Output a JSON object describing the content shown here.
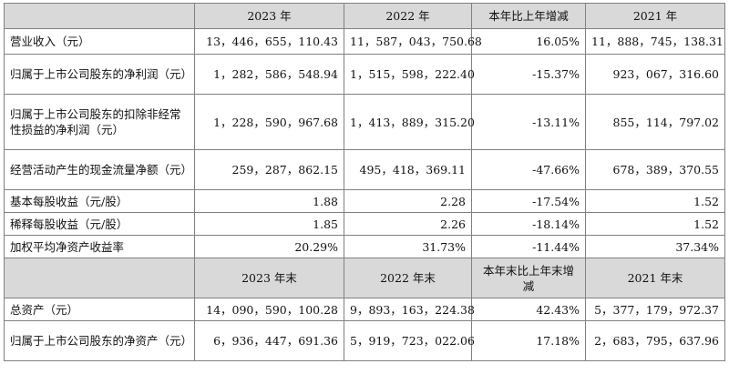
{
  "header1": [
    "",
    "2023 年",
    "2022 年",
    "本年比上年增减",
    "2021 年"
  ],
  "rows1": [
    {
      "label": "营业收入（元）",
      "values": [
        "13，446，655，110.43",
        "11，587，043，750.68",
        "16.05%",
        "11，888，745，138.31"
      ]
    },
    {
      "label": "归属于上市公司股东的净利润（元）",
      "values": [
        "1，282，586，548.94",
        "1，515，598，222.40",
        "-15.37%",
        "923，067，316.60"
      ]
    },
    {
      "label": "归属于上市公司股东的扣除非经常性损益的净利润（元）",
      "values": [
        "1，228，590，967.68",
        "1，413，889，315.20",
        "-13.11%",
        "855，114，797.02"
      ]
    },
    {
      "label": "经营活动产生的现金流量净额（元）",
      "values": [
        "259，287，862.15",
        "495，418，369.11",
        "-47.66%",
        "678，389，370.55"
      ]
    },
    {
      "label": "基本每股收益（元/股）",
      "values": [
        "1.88",
        "2.28",
        "-17.54%",
        "1.52"
      ]
    },
    {
      "label": "稀释每股收益（元/股）",
      "values": [
        "1.85",
        "2.26",
        "-18.14%",
        "1.52"
      ]
    },
    {
      "label": "加权平均净资产收益率",
      "values": [
        "20.29%",
        "31.73%",
        "-11.44%",
        "37.34%"
      ]
    }
  ],
  "header2": [
    "",
    "2023 年末",
    "2022 年末",
    "本年末比上年末增减",
    "2021 年末"
  ],
  "rows2": [
    {
      "label": "总资产（元）",
      "values": [
        "14，090，590，100.28",
        "9，893，163，224.38",
        "42.43%",
        "5，377，179，972.37"
      ]
    },
    {
      "label": "归属于上市公司股东的净资产（元）",
      "values": [
        "6，936，447，691.36",
        "5，919，723，022.06",
        "17.18%",
        "2，683，795，637.96"
      ]
    }
  ]
}
